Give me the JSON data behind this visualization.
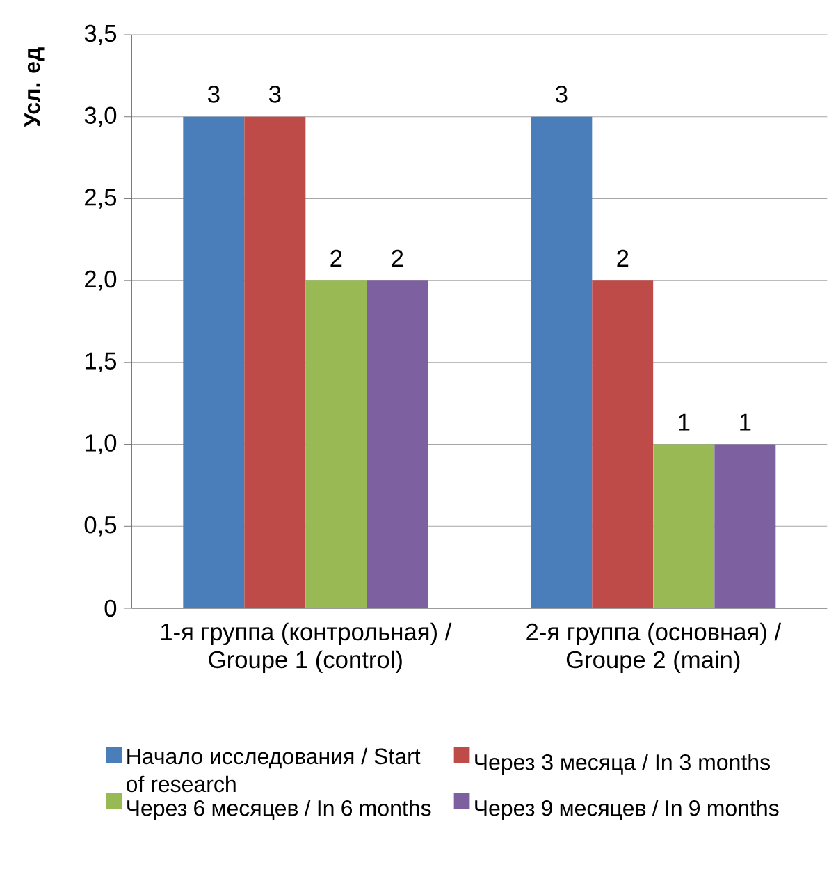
{
  "chart_data": {
    "type": "bar",
    "ylabel": "Усл. ед",
    "categories": [
      "1-я группа (контрольная) / Groupe 1 (control)",
      "2-я группа (основная) / Groupe 2 (main)"
    ],
    "series": [
      {
        "name": "Начало исследования / Start of research",
        "color": "#4a7ebb",
        "values": [
          3,
          3
        ]
      },
      {
        "name": "Через 3 месяца / In 3 months",
        "color": "#be4b48",
        "values": [
          3,
          2
        ]
      },
      {
        "name": "Через 6 месяцев / In 6 months",
        "color": "#98b954",
        "values": [
          2,
          1
        ]
      },
      {
        "name": "Через 9 месяцев / In 9 months",
        "color": "#7d60a0",
        "values": [
          2,
          1
        ]
      }
    ],
    "ylim": [
      0,
      3.5
    ],
    "yticks": [
      0,
      {
        "value": 0.5,
        "label": "0,5"
      },
      {
        "value": 1,
        "label": "1,0"
      },
      {
        "value": 1.5,
        "label": "1,5"
      },
      {
        "value": 2,
        "label": "2,0"
      },
      {
        "value": 2.5,
        "label": "2,5"
      },
      {
        "value": 3,
        "label": "3,0"
      },
      {
        "value": 3.5,
        "label": "3,5"
      }
    ],
    "grid": "y",
    "legend": "bottom",
    "data_labels": true
  }
}
